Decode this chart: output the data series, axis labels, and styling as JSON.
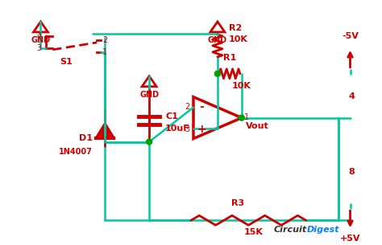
{
  "bg_color": "#ffffff",
  "wire_color": "#00c8a0",
  "component_color": "#cc0000",
  "dot_color": "#00a000",
  "text_color": "#000000",
  "title_color1": "#000000",
  "title_color2": "#0080ff",
  "logo_text1": "Circuit",
  "logo_text2": "Digest",
  "components": {
    "R3": {
      "label": "R3",
      "value": "15K"
    },
    "R1": {
      "label": "R1",
      "value": "10K"
    },
    "R2": {
      "label": "R2",
      "value": "10K"
    },
    "C1": {
      "label": "C1",
      "value": "10uF"
    },
    "D1": {
      "label": "D1",
      "name": "1N4007"
    },
    "S1": {
      "label": "S1"
    },
    "opamp": {}
  },
  "supply": {
    "pos": "+5V",
    "neg": "-5V",
    "pos_label": "8",
    "neg_label": "4"
  }
}
